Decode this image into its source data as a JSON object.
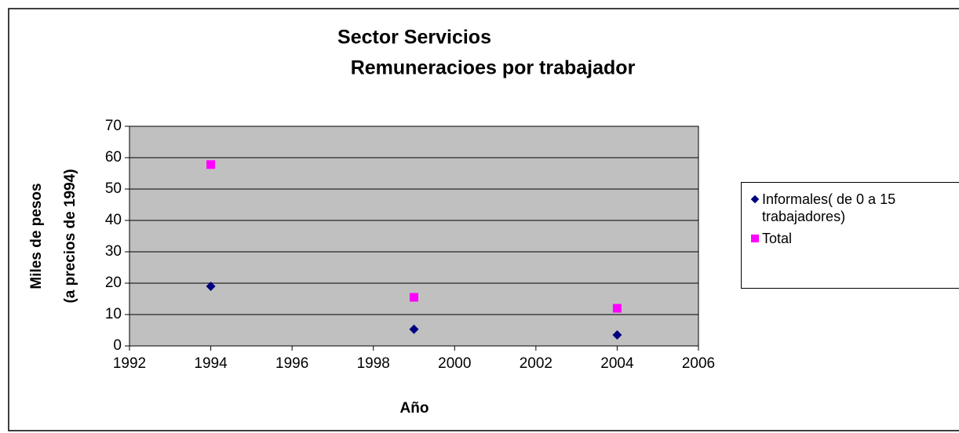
{
  "chart_data": {
    "type": "scatter",
    "title": [
      "Sector Servicios",
      "Remuneracioes por trabajador"
    ],
    "xlabel": "Año",
    "ylabel": [
      "Miles de pesos",
      "(a precios de 1994)"
    ],
    "series": [
      {
        "name": "Informales( de 0 a 15 trabajadores)",
        "color": "#000080",
        "marker": "diamond",
        "x": [
          1994,
          1999,
          2004
        ],
        "values": [
          19,
          5.3,
          3.5
        ]
      },
      {
        "name": "Total",
        "color": "#ff00ff",
        "marker": "square",
        "x": [
          1994,
          1999,
          2004
        ],
        "values": [
          57.8,
          15.5,
          12
        ]
      }
    ],
    "xlim": [
      1992,
      2006
    ],
    "xticks": [
      1992,
      1994,
      1996,
      1998,
      2000,
      2002,
      2004,
      2006
    ],
    "ylim": [
      0,
      70
    ],
    "yticks": [
      0,
      10,
      20,
      30,
      40,
      50,
      60,
      70
    ],
    "grid": true,
    "plot_background": "#c0c0c0",
    "legend": "right"
  }
}
